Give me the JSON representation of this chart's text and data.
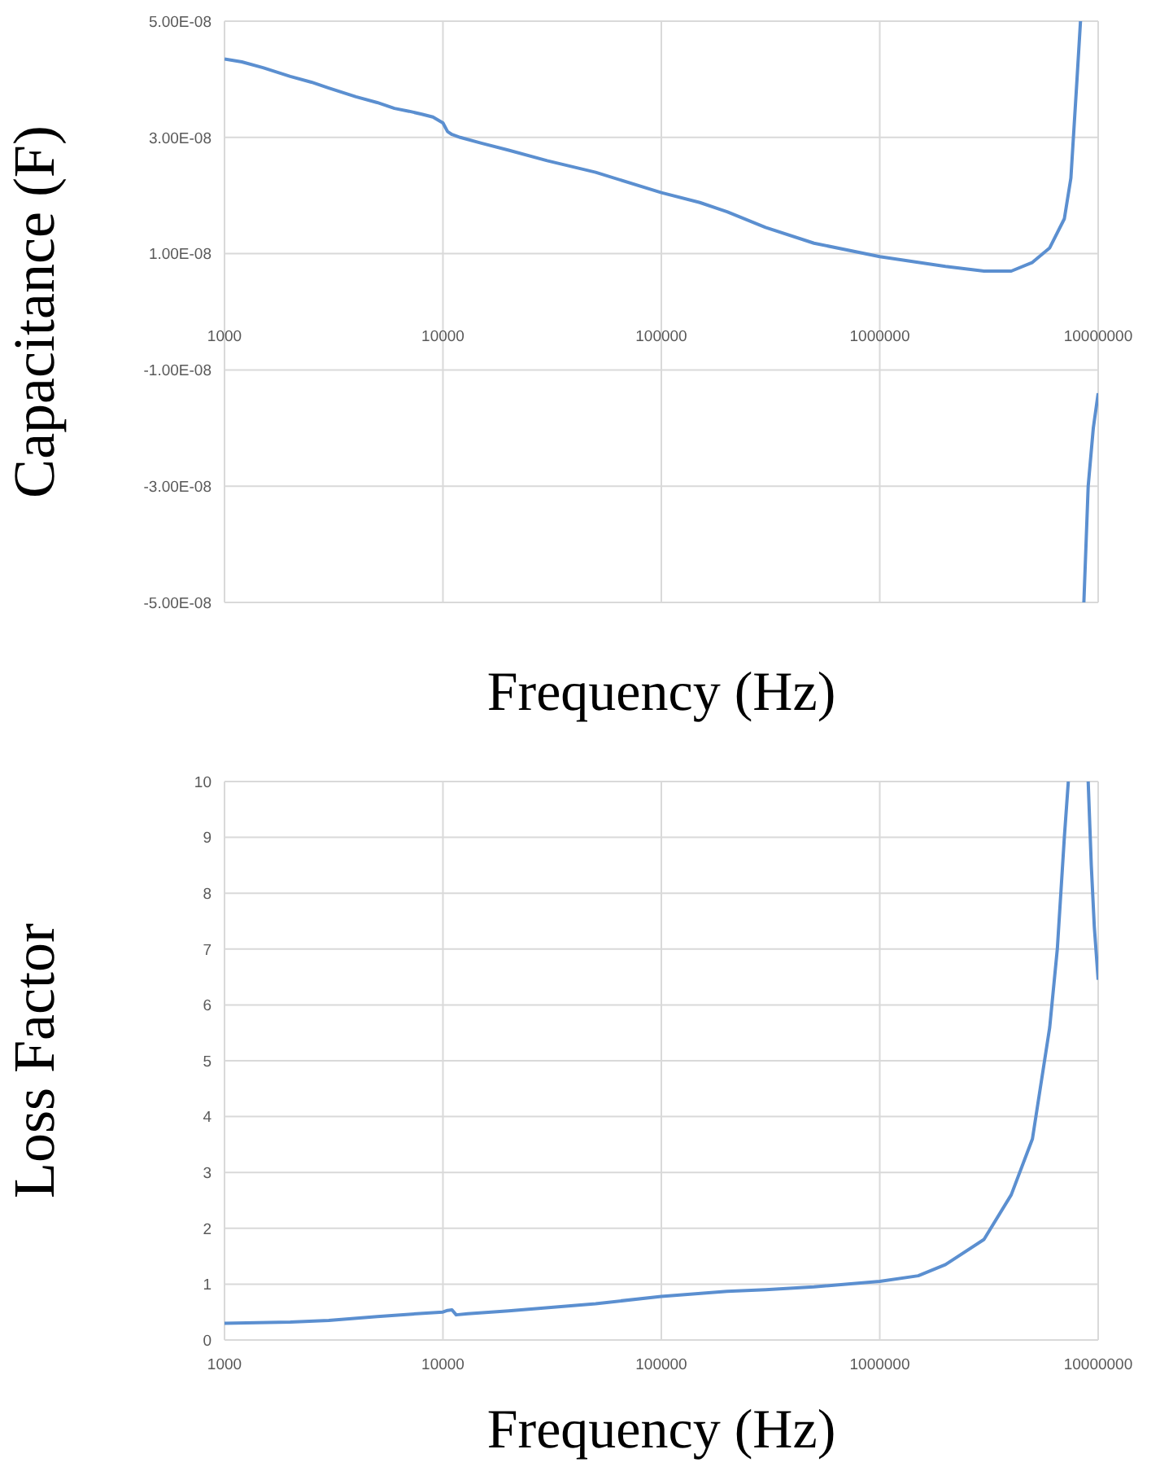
{
  "chart_data": [
    {
      "type": "line",
      "xlabel": "Frequency (Hz)",
      "ylabel": "Capacitance (F)",
      "log": "x",
      "grid": true,
      "marker": "none",
      "line_style": "solid",
      "xlim": [
        1000,
        10000000
      ],
      "xticks": [
        1000,
        10000,
        100000,
        1000000,
        10000000
      ],
      "ylim": [
        -5e-08,
        5e-08
      ],
      "yticks": [
        {
          "value": -5e-08,
          "label": "-5.00E-08"
        },
        {
          "value": -3e-08,
          "label": "-3.00E-08"
        },
        {
          "value": -1e-08,
          "label": "-1.00E-08"
        },
        {
          "value": 1e-08,
          "label": "1.00E-08"
        },
        {
          "value": 3e-08,
          "label": "3.00E-08"
        },
        {
          "value": 5e-08,
          "label": "5.00E-08"
        }
      ],
      "x": [
        1000,
        1200,
        1500,
        2000,
        2500,
        3000,
        4000,
        5000,
        6000,
        7000,
        8000,
        9000,
        10000,
        10500,
        11000,
        12000,
        15000,
        20000,
        30000,
        50000,
        100000,
        150000,
        200000,
        300000,
        500000,
        1000000,
        2000000,
        3000000,
        4000000,
        5000000,
        6000000,
        7000000,
        7500000,
        8000000,
        8300000,
        8450000,
        8600000,
        9000000,
        9500000,
        10000000
      ],
      "series": [
        {
          "color": "#5b8fd0",
          "values": [
            4.35e-08,
            4.3e-08,
            4.2e-08,
            4.05e-08,
            3.95e-08,
            3.85e-08,
            3.7e-08,
            3.6e-08,
            3.5e-08,
            3.45e-08,
            3.4e-08,
            3.35e-08,
            3.25e-08,
            3.1e-08,
            3.05e-08,
            3e-08,
            2.9e-08,
            2.78e-08,
            2.6e-08,
            2.4e-08,
            2.05e-08,
            1.88e-08,
            1.72e-08,
            1.45e-08,
            1.18e-08,
            9.5e-09,
            7.8e-09,
            7e-09,
            7e-09,
            8.5e-09,
            1.1e-08,
            1.6e-08,
            2.3e-08,
            4e-08,
            5e-08,
            null,
            -5e-08,
            -3e-08,
            -2e-08,
            -1.4e-08
          ]
        }
      ]
    },
    {
      "type": "line",
      "xlabel": "Frequency (Hz)",
      "ylabel": "Loss Factor",
      "log": "x",
      "grid": true,
      "marker": "none",
      "line_style": "solid",
      "xlim": [
        1000,
        10000000
      ],
      "xticks": [
        1000,
        10000,
        100000,
        1000000,
        10000000
      ],
      "ylim": [
        0,
        10
      ],
      "yticks": [
        0,
        1,
        2,
        3,
        4,
        5,
        6,
        7,
        8,
        9,
        10
      ],
      "x": [
        1000,
        2000,
        3000,
        5000,
        7000,
        10000,
        10500,
        11000,
        11500,
        13000,
        20000,
        50000,
        100000,
        200000,
        300000,
        500000,
        1000000,
        1500000,
        2000000,
        3000000,
        4000000,
        5000000,
        6000000,
        6500000,
        7000000,
        7300000,
        8000000,
        9000000,
        9300000,
        9600000,
        10000000
      ],
      "series": [
        {
          "color": "#5b8fd0",
          "values": [
            0.3,
            0.32,
            0.35,
            0.42,
            0.46,
            0.5,
            0.53,
            0.54,
            0.45,
            0.47,
            0.52,
            0.65,
            0.78,
            0.87,
            0.9,
            0.95,
            1.05,
            1.15,
            1.35,
            1.8,
            2.6,
            3.6,
            5.6,
            7.0,
            9.0,
            10,
            null,
            10,
            8.5,
            7.4,
            6.45
          ]
        }
      ]
    }
  ]
}
